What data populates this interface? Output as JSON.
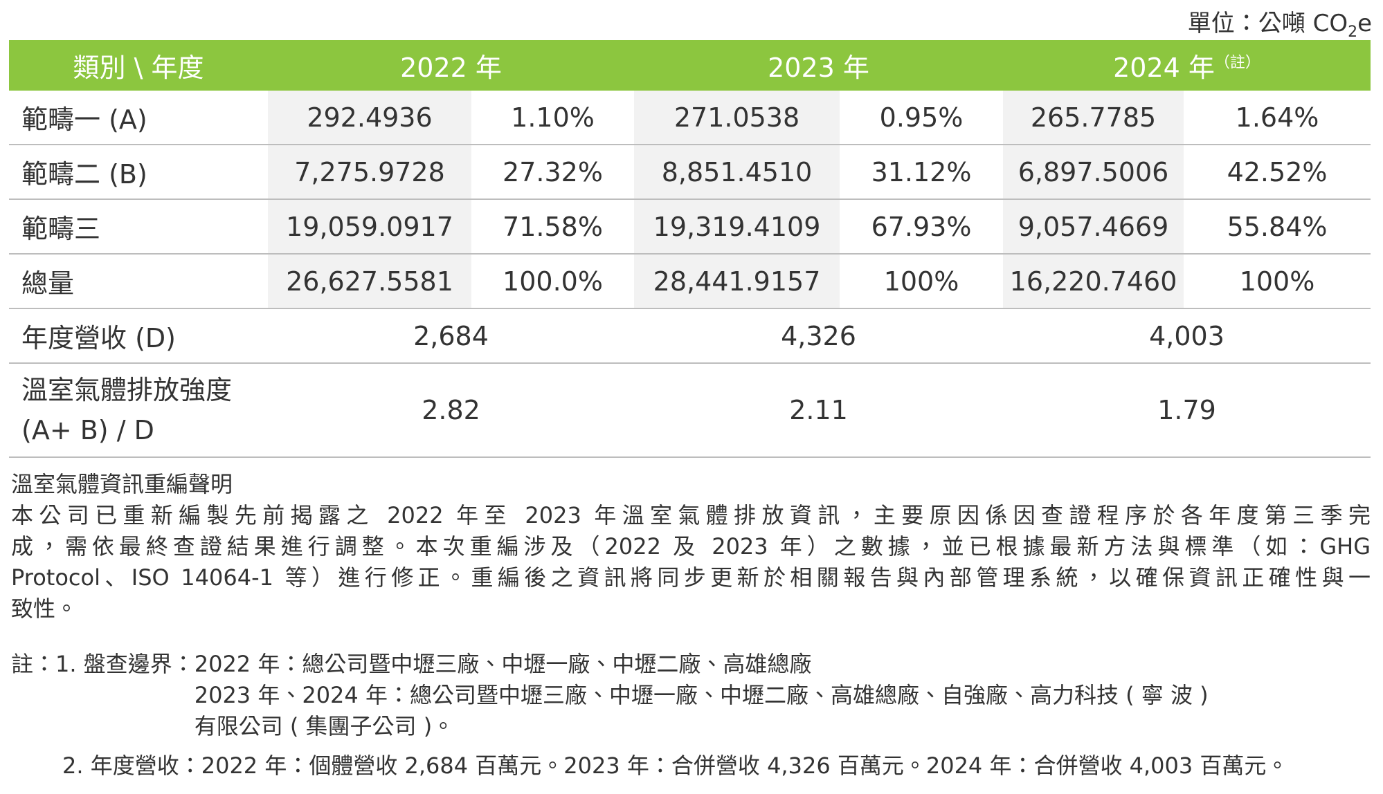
{
  "unit": {
    "text": "單位：公噸 CO",
    "sub": "2",
    "tail": "e"
  },
  "table": {
    "header": {
      "label": "類別 \\ 年度",
      "years": [
        "2022 年",
        "2023 年",
        "2024 年"
      ],
      "note_mark": "（註）"
    },
    "rows": [
      [
        "範疇一 (A)",
        "292.4936",
        "1.10%",
        "271.0538",
        "0.95%",
        "265.7785",
        "1.64%"
      ],
      [
        "範疇二 (B)",
        "7,275.9728",
        "27.32%",
        "8,851.4510",
        "31.12%",
        "6,897.5006",
        "42.52%"
      ],
      [
        "範疇三",
        "19,059.0917",
        "71.58%",
        "19,319.4109",
        "67.93%",
        "9,057.4669",
        "55.84%"
      ],
      [
        "總量",
        "26,627.5581",
        "100.0%",
        "28,441.9157",
        "100%",
        "16,220.7460",
        "100%"
      ]
    ],
    "revenue": {
      "label": "年度營收 (D)",
      "values": [
        "2,684",
        "4,326",
        "4,003"
      ]
    },
    "intensity": {
      "label_lines": [
        "溫室氣體排放強度",
        "(A+ B) / D"
      ],
      "values": [
        "2.82",
        "2.11",
        "1.79"
      ]
    }
  },
  "statement": {
    "title": "溫室氣體資訊重編聲明",
    "lines": [
      "本公司已重新編製先前揭露之 2022 年至 2023 年溫室氣體排放資訊，主要原因係因查證程序於各年度第三季完",
      "成，需依最終查證結果進行調整。本次重編涉及（2022 及 2023 年）之數據，並已根據最新方法與標準（如：GHG",
      "Protocol、ISO 14064-1 等）進行修正。重編後之資訊將同步更新於相關報告與內部管理系統，以確保資訊正確性與一",
      "致性。"
    ]
  },
  "notes": [
    {
      "label": "註：1. 盤查邊界：",
      "lines": [
        "2022 年：總公司暨中壢三廠、中壢一廠、中壢二廠、高雄總廠",
        "2023 年、2024 年：總公司暨中壢三廠、中壢一廠、中壢二廠、高雄總廠、自強廠、高力科技 ( 寧 波 )",
        "有限公司 ( 集團子公司 )。"
      ]
    },
    {
      "label": "2. 年度營收：",
      "lines": [
        "2022 年：個體營收 2,684 百萬元。2023 年：合併營收 4,326 百萬元。2024 年：合併營收 4,003 百萬元。"
      ]
    }
  ]
}
